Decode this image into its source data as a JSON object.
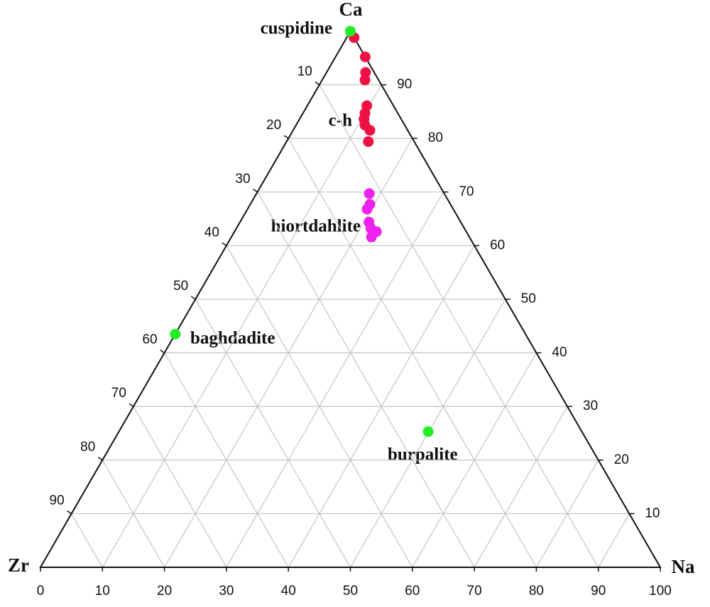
{
  "chart_data": {
    "type": "ternary",
    "corners": {
      "top": "Ca",
      "left": "Zr",
      "right": "Na"
    },
    "na_ticks": [
      0,
      10,
      20,
      30,
      40,
      50,
      60,
      70,
      80,
      90,
      100
    ],
    "zr_ticks": [
      10,
      20,
      30,
      40,
      50,
      60,
      70,
      80,
      90
    ],
    "ca_ticks": [
      10,
      20,
      30,
      40,
      50,
      60,
      70,
      80,
      90
    ],
    "grid": true,
    "series": [
      {
        "color": "#ee1144",
        "Ca": [
          98.8,
          95.2,
          92.3,
          90.9,
          86.1,
          84.7,
          83.6,
          82.5,
          81.5,
          79.4
        ],
        "Na": [
          1.2,
          4.8,
          6.3,
          6.9,
          9.6,
          10.0,
          10.4,
          11.1,
          12.4,
          13.2
        ],
        "Zr": [
          0,
          0,
          1.4,
          2.2,
          4.3,
          5.3,
          6.0,
          6.4,
          6.1,
          7.4
        ]
      },
      {
        "color": "#ee22ee",
        "Ca": [
          69.7,
          67.7,
          66.8,
          64.4,
          63.2,
          62.6,
          61.6
        ],
        "Na": [
          18.2,
          19.3,
          19.3,
          20.8,
          21.7,
          22.9,
          22.6
        ],
        "Zr": [
          12.1,
          13.0,
          13.9,
          14.8,
          15.1,
          14.5,
          15.8
        ]
      },
      {
        "color": "#22ee22",
        "Ca": [
          100,
          43.5,
          25.3
        ],
        "Na": [
          0,
          0,
          49.9
        ],
        "Zr": [
          0,
          56.5,
          24.8
        ]
      }
    ],
    "annotations": [
      "cuspidine",
      "c-h",
      "hiortdahlite",
      "baghdadite",
      "burpalite"
    ]
  }
}
